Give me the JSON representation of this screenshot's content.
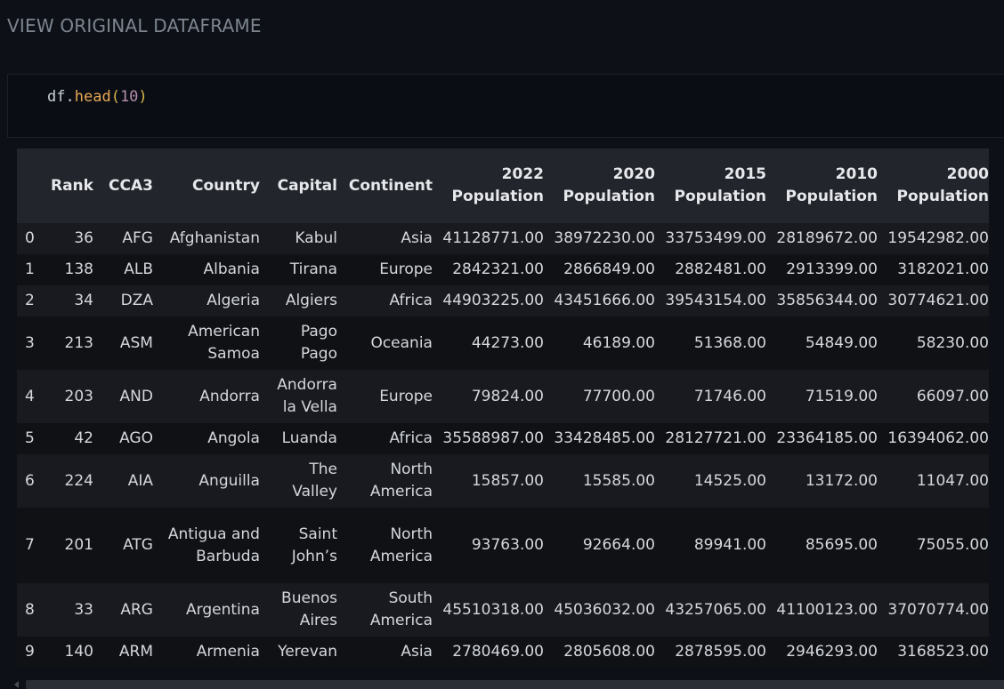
{
  "section": {
    "title": "VIEW ORIGINAL DATAFRAME"
  },
  "code": {
    "object": "df",
    "dot": ".",
    "method": "head",
    "open_paren": "(",
    "arg": "10",
    "close_paren": ")"
  },
  "table": {
    "headers": {
      "index": "",
      "rank": "Rank",
      "cca3": "CCA3",
      "country": "Country",
      "capital": "Capital",
      "continent": "Continent",
      "pop2022": "2022 Population",
      "pop2020": "2020 Population",
      "pop2015": "2015 Population",
      "pop2010": "2010 Population",
      "pop2000": "2000 Population"
    },
    "rows": [
      {
        "index": "0",
        "rank": "36",
        "cca3": "AFG",
        "country": "Afghanistan",
        "capital": "Kabul",
        "continent": "Asia",
        "pop2022": "41128771.00",
        "pop2020": "38972230.00",
        "pop2015": "33753499.00",
        "pop2010": "28189672.00",
        "pop2000": "19542982.00"
      },
      {
        "index": "1",
        "rank": "138",
        "cca3": "ALB",
        "country": "Albania",
        "capital": "Tirana",
        "continent": "Europe",
        "pop2022": "2842321.00",
        "pop2020": "2866849.00",
        "pop2015": "2882481.00",
        "pop2010": "2913399.00",
        "pop2000": "3182021.00"
      },
      {
        "index": "2",
        "rank": "34",
        "cca3": "DZA",
        "country": "Algeria",
        "capital": "Algiers",
        "continent": "Africa",
        "pop2022": "44903225.00",
        "pop2020": "43451666.00",
        "pop2015": "39543154.00",
        "pop2010": "35856344.00",
        "pop2000": "30774621.00"
      },
      {
        "index": "3",
        "rank": "213",
        "cca3": "ASM",
        "country": "American Samoa",
        "capital": "Pago Pago",
        "continent": "Oceania",
        "pop2022": "44273.00",
        "pop2020": "46189.00",
        "pop2015": "51368.00",
        "pop2010": "54849.00",
        "pop2000": "58230.00"
      },
      {
        "index": "4",
        "rank": "203",
        "cca3": "AND",
        "country": "Andorra",
        "capital": "Andorra la Vella",
        "continent": "Europe",
        "pop2022": "79824.00",
        "pop2020": "77700.00",
        "pop2015": "71746.00",
        "pop2010": "71519.00",
        "pop2000": "66097.00"
      },
      {
        "index": "5",
        "rank": "42",
        "cca3": "AGO",
        "country": "Angola",
        "capital": "Luanda",
        "continent": "Africa",
        "pop2022": "35588987.00",
        "pop2020": "33428485.00",
        "pop2015": "28127721.00",
        "pop2010": "23364185.00",
        "pop2000": "16394062.00"
      },
      {
        "index": "6",
        "rank": "224",
        "cca3": "AIA",
        "country": "Anguilla",
        "capital": "The Valley",
        "continent": "North America",
        "pop2022": "15857.00",
        "pop2020": "15585.00",
        "pop2015": "14525.00",
        "pop2010": "13172.00",
        "pop2000": "11047.00"
      },
      {
        "index": "7",
        "rank": "201",
        "cca3": "ATG",
        "country": "Antigua and Barbuda",
        "capital": "Saint John’s",
        "continent": "North America",
        "pop2022": "93763.00",
        "pop2020": "92664.00",
        "pop2015": "89941.00",
        "pop2010": "85695.00",
        "pop2000": "75055.00"
      },
      {
        "index": "8",
        "rank": "33",
        "cca3": "ARG",
        "country": "Argentina",
        "capital": "Buenos Aires",
        "continent": "South America",
        "pop2022": "45510318.00",
        "pop2020": "45036032.00",
        "pop2015": "43257065.00",
        "pop2010": "41100123.00",
        "pop2000": "37070774.00"
      },
      {
        "index": "9",
        "rank": "140",
        "cca3": "ARM",
        "country": "Armenia",
        "capital": "Yerevan",
        "continent": "Asia",
        "pop2022": "2780469.00",
        "pop2020": "2805608.00",
        "pop2015": "2878595.00",
        "pop2010": "2946293.00",
        "pop2000": "3168523.00"
      }
    ]
  }
}
